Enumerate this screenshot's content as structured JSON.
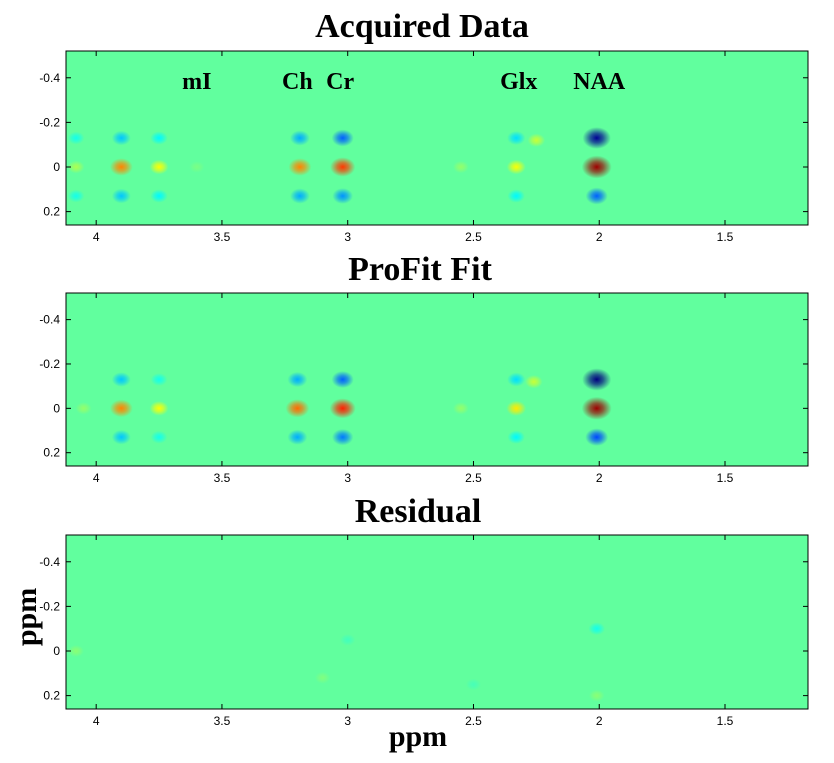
{
  "figure": {
    "xlabel": "ppm",
    "ylabel": "ppm"
  },
  "chart_data": [
    {
      "type": "heatmap",
      "title": "Acquired Data",
      "xlim": [
        4.12,
        1.17
      ],
      "ylim": [
        -0.52,
        0.26
      ],
      "xticks": [
        4,
        3.5,
        3,
        2.5,
        2,
        1.5
      ],
      "xtick_labels": [
        "4",
        "3.5",
        "3",
        "2.5",
        "2",
        "1.5"
      ],
      "yticks": [
        -0.4,
        -0.2,
        0,
        0.2
      ],
      "ytick_labels": [
        "-0.4",
        "-0.2",
        "0",
        "0.2"
      ],
      "colormap": "jet",
      "peak_labels": [
        {
          "text": "mI",
          "ppm": 3.6
        },
        {
          "text": "Ch",
          "ppm": 3.2
        },
        {
          "text": "Cr",
          "ppm": 3.03
        },
        {
          "text": "Glx",
          "ppm": 2.32
        },
        {
          "text": "NAA",
          "ppm": 2.0
        }
      ],
      "peaks": [
        {
          "x": 4.08,
          "y": 0,
          "v": 0.15
        },
        {
          "x": 3.9,
          "y": 0,
          "v": 0.55
        },
        {
          "x": 3.75,
          "y": 0,
          "v": 0.3
        },
        {
          "x": 3.6,
          "y": 0,
          "v": 0.05
        },
        {
          "x": 3.19,
          "y": 0,
          "v": 0.55
        },
        {
          "x": 3.02,
          "y": 0,
          "v": 0.7
        },
        {
          "x": 2.55,
          "y": 0,
          "v": 0.1
        },
        {
          "x": 2.33,
          "y": 0,
          "v": 0.3
        },
        {
          "x": 2.25,
          "y": -0.12,
          "v": 0.2
        },
        {
          "x": 2.01,
          "y": 0,
          "v": 1.0
        },
        {
          "x": 2.01,
          "y": -0.13,
          "v": -0.9
        },
        {
          "x": 2.01,
          "y": 0.13,
          "v": -0.5
        },
        {
          "x": 3.02,
          "y": -0.13,
          "v": -0.5
        },
        {
          "x": 3.02,
          "y": 0.13,
          "v": -0.4
        },
        {
          "x": 3.19,
          "y": -0.13,
          "v": -0.35
        },
        {
          "x": 3.19,
          "y": 0.13,
          "v": -0.35
        },
        {
          "x": 3.9,
          "y": -0.13,
          "v": -0.3
        },
        {
          "x": 3.9,
          "y": 0.13,
          "v": -0.3
        },
        {
          "x": 3.75,
          "y": -0.13,
          "v": -0.2
        },
        {
          "x": 3.75,
          "y": 0.13,
          "v": -0.2
        },
        {
          "x": 4.08,
          "y": -0.13,
          "v": -0.15
        },
        {
          "x": 4.08,
          "y": 0.13,
          "v": -0.15
        },
        {
          "x": 2.33,
          "y": -0.13,
          "v": -0.25
        },
        {
          "x": 2.33,
          "y": 0.13,
          "v": -0.2
        }
      ]
    },
    {
      "type": "heatmap",
      "title": "ProFit Fit",
      "xlim": [
        4.12,
        1.17
      ],
      "ylim": [
        -0.52,
        0.26
      ],
      "xticks": [
        4,
        3.5,
        3,
        2.5,
        2,
        1.5
      ],
      "xtick_labels": [
        "4",
        "3.5",
        "3",
        "2.5",
        "2",
        "1.5"
      ],
      "yticks": [
        -0.4,
        -0.2,
        0,
        0.2
      ],
      "ytick_labels": [
        "-0.4",
        "-0.2",
        "0",
        "0.2"
      ],
      "colormap": "jet",
      "peaks": [
        {
          "x": 3.9,
          "y": 0,
          "v": 0.55
        },
        {
          "x": 3.75,
          "y": 0,
          "v": 0.3
        },
        {
          "x": 4.05,
          "y": 0,
          "v": 0.1
        },
        {
          "x": 3.2,
          "y": 0,
          "v": 0.6
        },
        {
          "x": 3.02,
          "y": 0,
          "v": 0.75
        },
        {
          "x": 2.55,
          "y": 0,
          "v": 0.1
        },
        {
          "x": 2.33,
          "y": 0,
          "v": 0.35
        },
        {
          "x": 2.26,
          "y": -0.12,
          "v": 0.2
        },
        {
          "x": 2.01,
          "y": 0,
          "v": 1.0
        },
        {
          "x": 2.01,
          "y": -0.13,
          "v": -0.95
        },
        {
          "x": 2.01,
          "y": 0.13,
          "v": -0.55
        },
        {
          "x": 3.02,
          "y": -0.13,
          "v": -0.5
        },
        {
          "x": 3.02,
          "y": 0.13,
          "v": -0.45
        },
        {
          "x": 3.2,
          "y": -0.13,
          "v": -0.35
        },
        {
          "x": 3.2,
          "y": 0.13,
          "v": -0.35
        },
        {
          "x": 3.9,
          "y": -0.13,
          "v": -0.3
        },
        {
          "x": 3.9,
          "y": 0.13,
          "v": -0.3
        },
        {
          "x": 3.75,
          "y": -0.13,
          "v": -0.15
        },
        {
          "x": 3.75,
          "y": 0.13,
          "v": -0.15
        },
        {
          "x": 2.33,
          "y": -0.13,
          "v": -0.25
        },
        {
          "x": 2.33,
          "y": 0.13,
          "v": -0.2
        }
      ]
    },
    {
      "type": "heatmap",
      "title": "Residual",
      "xlim": [
        4.12,
        1.17
      ],
      "ylim": [
        -0.52,
        0.26
      ],
      "xticks": [
        4,
        3.5,
        3,
        2.5,
        2,
        1.5
      ],
      "xtick_labels": [
        "4",
        "3.5",
        "3",
        "2.5",
        "2",
        "1.5"
      ],
      "yticks": [
        -0.4,
        -0.2,
        0,
        0.2
      ],
      "ytick_labels": [
        "-0.4",
        "-0.2",
        "0",
        "0.2"
      ],
      "colormap": "jet",
      "peaks": [
        {
          "x": 4.08,
          "y": 0,
          "v": 0.08
        },
        {
          "x": 3.1,
          "y": 0.12,
          "v": 0.06
        },
        {
          "x": 2.01,
          "y": -0.1,
          "v": -0.15
        },
        {
          "x": 2.01,
          "y": 0.2,
          "v": 0.08
        },
        {
          "x": 3.0,
          "y": -0.05,
          "v": -0.06
        },
        {
          "x": 2.5,
          "y": 0.15,
          "v": -0.05
        }
      ]
    }
  ]
}
